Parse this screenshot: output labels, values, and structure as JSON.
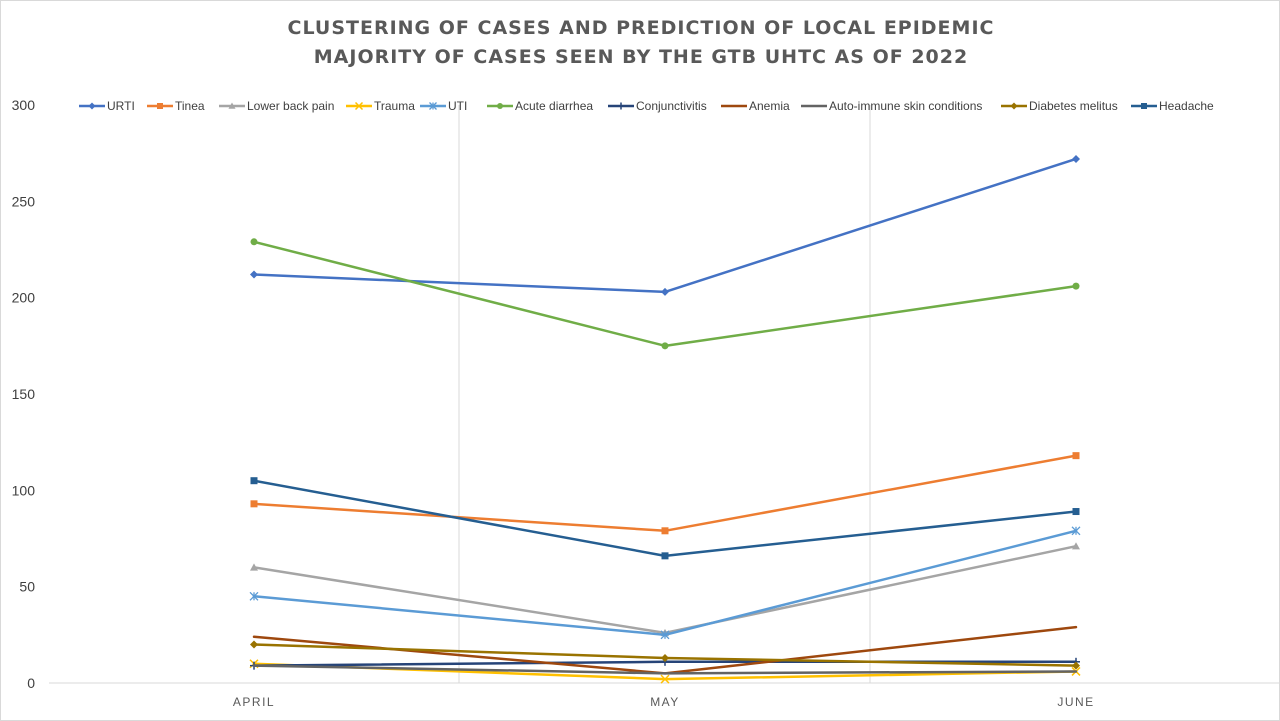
{
  "chart_data": {
    "type": "line",
    "title": "CLUSTERING OF CASES AND PREDICTION OF LOCAL EPIDEMIC",
    "subtitle": "MAJORITY OF CASES SEEN BY THE GTB UHTC AS OF 2022",
    "xlabel": "",
    "ylabel": "",
    "categories": [
      "APRIL",
      "MAY",
      "JUNE"
    ],
    "ylim": [
      0,
      300
    ],
    "yticks": [
      "0",
      "50",
      "100",
      "150",
      "200",
      "250",
      "300"
    ],
    "legend_position": "top",
    "series": [
      {
        "name": "URTI",
        "color": "#4472C4",
        "marker": "diamond",
        "values": [
          212,
          203,
          272
        ]
      },
      {
        "name": "Tinea",
        "color": "#ED7D31",
        "marker": "square",
        "values": [
          93,
          79,
          118
        ]
      },
      {
        "name": "Lower back pain",
        "color": "#A5A5A5",
        "marker": "triangle",
        "values": [
          60,
          26,
          71
        ]
      },
      {
        "name": "Trauma",
        "color": "#FFC000",
        "marker": "x",
        "values": [
          10,
          2,
          6
        ]
      },
      {
        "name": "UTI",
        "color": "#5B9BD5",
        "marker": "star",
        "values": [
          45,
          25,
          79
        ]
      },
      {
        "name": "Acute diarrhea",
        "color": "#70AD47",
        "marker": "circle",
        "values": [
          229,
          175,
          206
        ]
      },
      {
        "name": "Conjunctivitis",
        "color": "#264478",
        "marker": "plus",
        "values": [
          9,
          11,
          11
        ]
      },
      {
        "name": "Anemia",
        "color": "#9E480E",
        "marker": "none",
        "values": [
          24,
          5,
          29
        ]
      },
      {
        "name": "Auto-immune skin conditions",
        "color": "#636363",
        "marker": "none",
        "values": [
          9,
          5,
          6
        ]
      },
      {
        "name": "Diabetes melitus",
        "color": "#997300",
        "marker": "diamond",
        "values": [
          20,
          13,
          9
        ]
      },
      {
        "name": "Headache",
        "color": "#255E91",
        "marker": "square",
        "values": [
          105,
          66,
          89
        ]
      }
    ]
  }
}
